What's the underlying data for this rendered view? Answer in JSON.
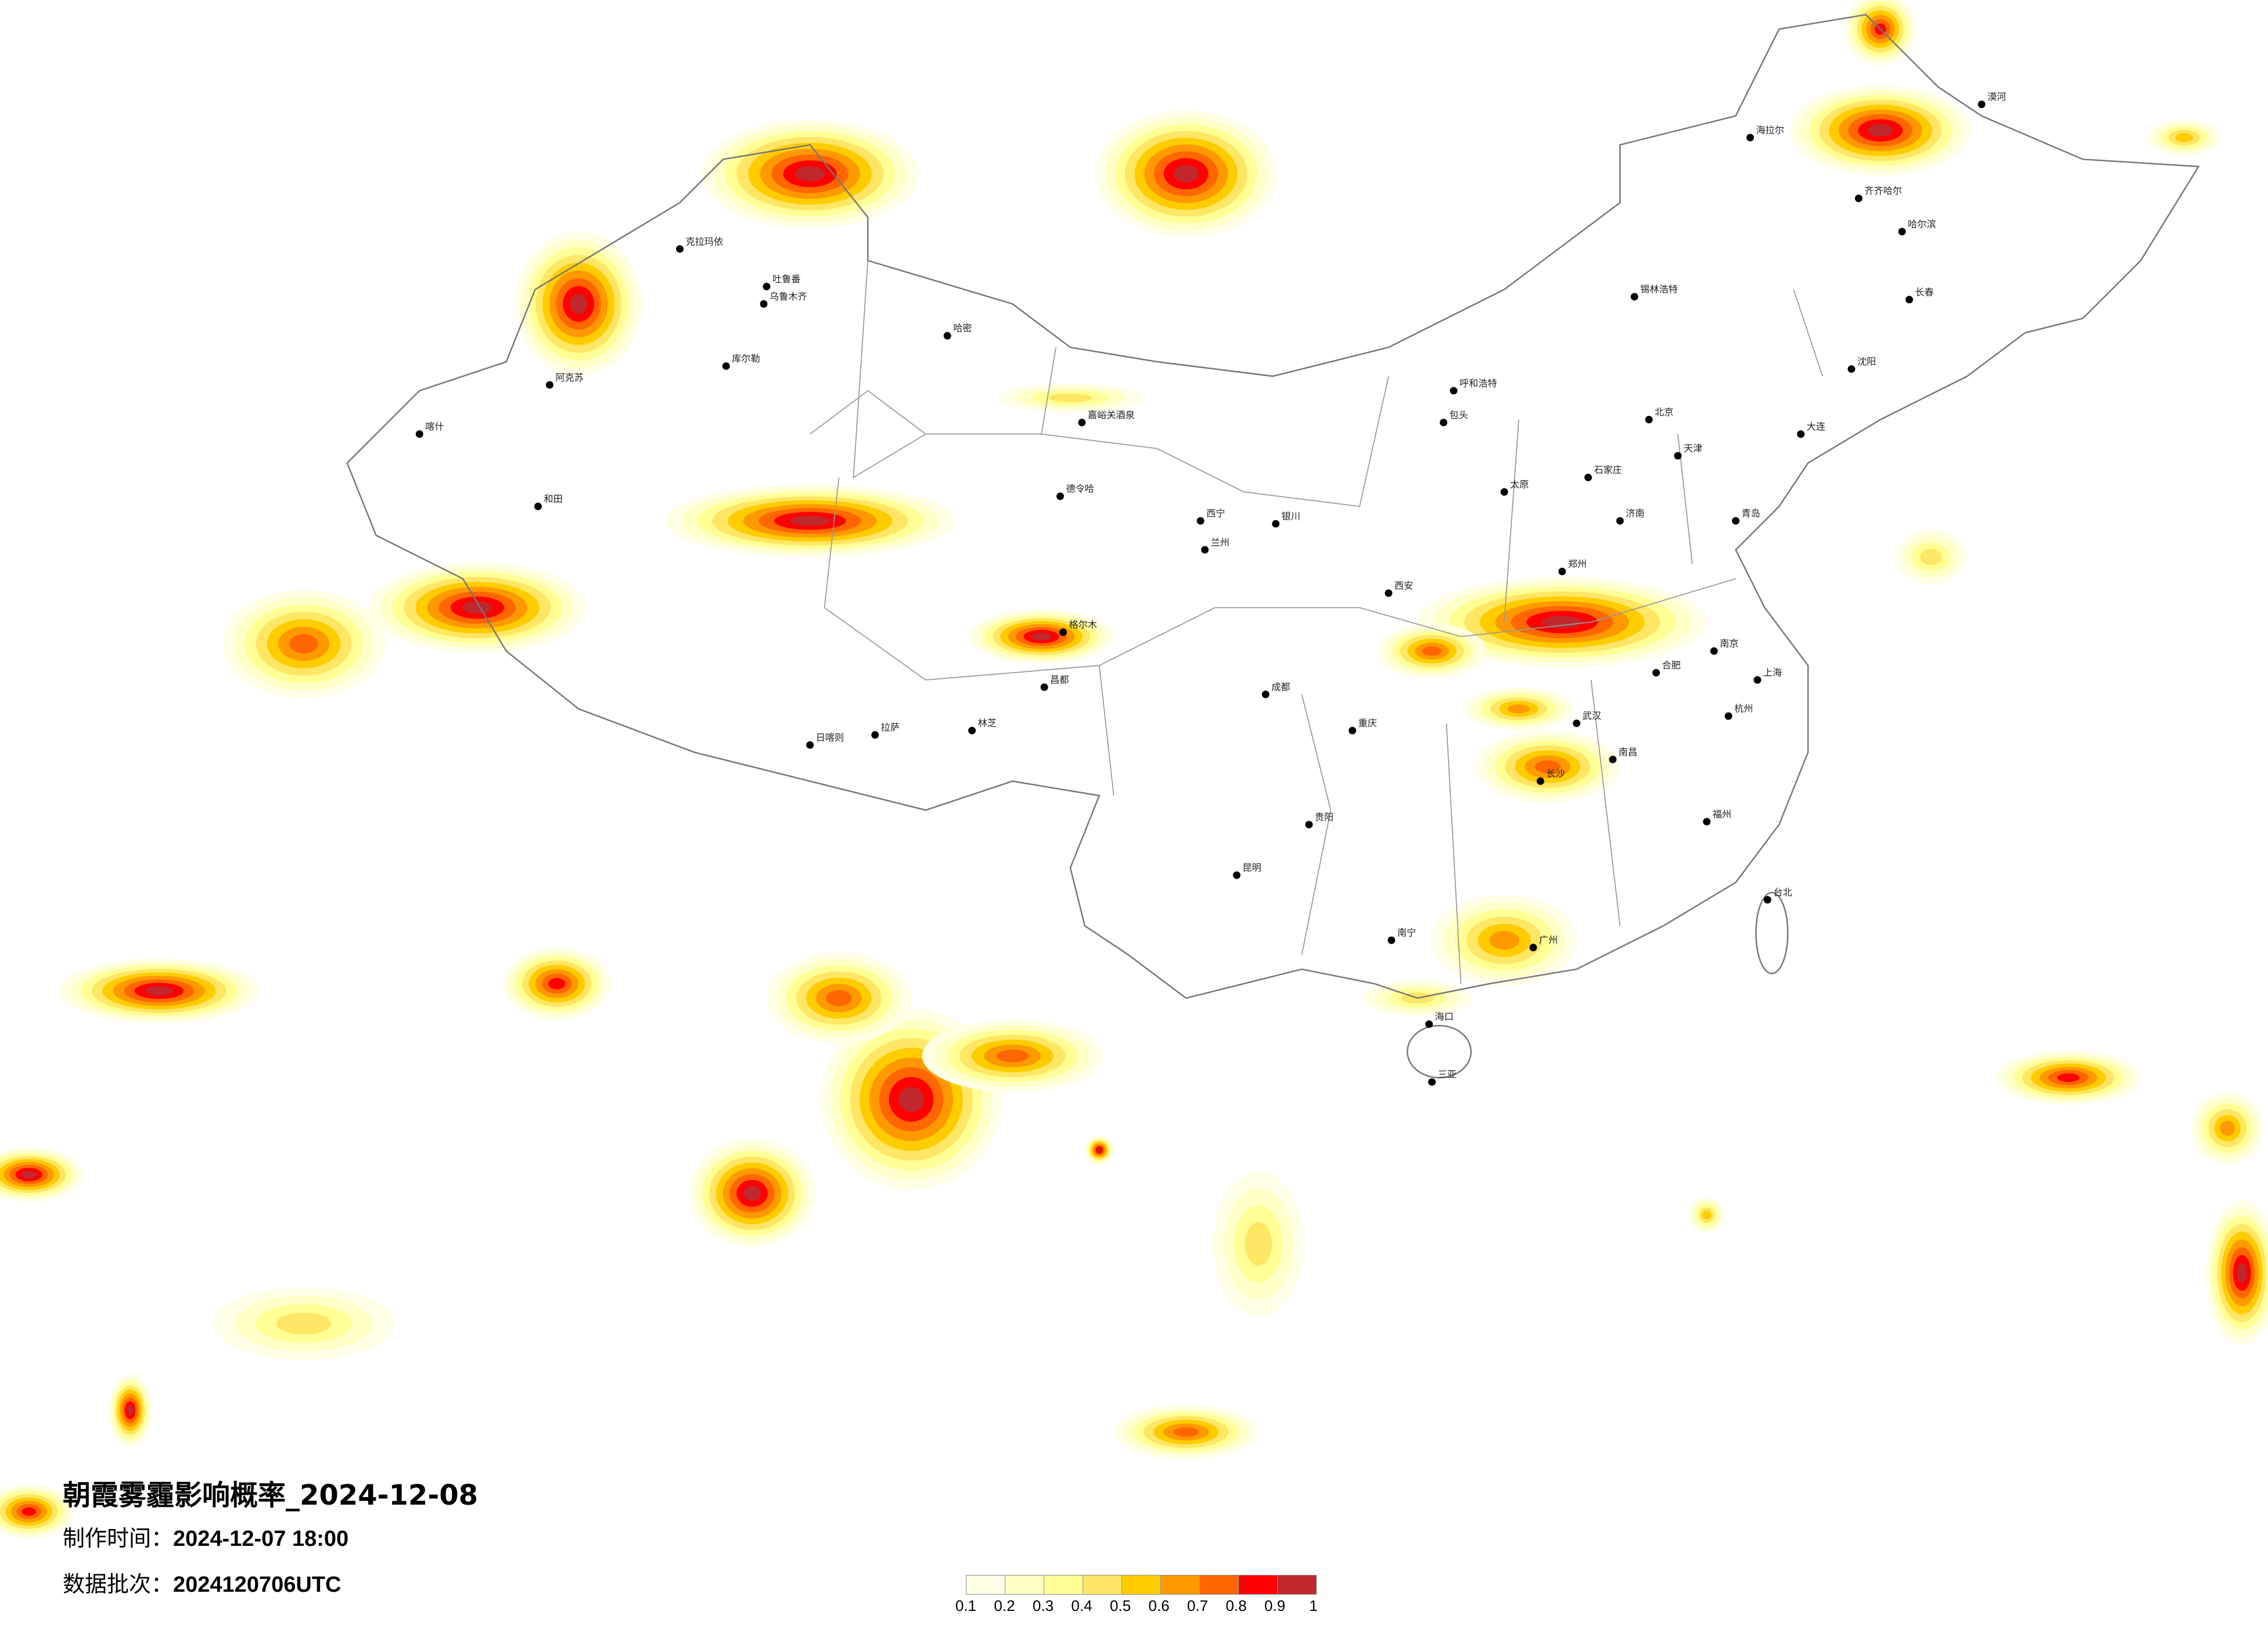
{
  "title": "朝霞雾霾影响概率_2024-12-08",
  "made_label": "制作时间：",
  "made_value": "2024-12-07 18:00",
  "batch_label": "数据批次：",
  "batch_value": "2024120706UTC",
  "legend": {
    "colors": [
      "#ffffe6",
      "#ffffc8",
      "#ffff96",
      "#ffe664",
      "#ffcc00",
      "#ff9900",
      "#ff6600",
      "#ff0000",
      "#c0282d"
    ],
    "ticks": [
      "0.1",
      "0.2",
      "0.3",
      "0.4",
      "0.5",
      "0.6",
      "0.7",
      "0.8",
      "0.9",
      "1"
    ]
  },
  "cities": [
    "克拉玛依",
    "乌鲁木齐",
    "吐鲁番",
    "哈密",
    "库尔勒",
    "喀什",
    "和田",
    "阿克苏",
    "嘉峪关酒泉",
    "德令哈",
    "格尔木",
    "拉萨",
    "日喀则",
    "林芝",
    "昌都",
    "西宁",
    "兰州",
    "银川",
    "呼和浩特",
    "包头",
    "北京",
    "天津",
    "石家庄",
    "太原",
    "济南",
    "郑州",
    "西安",
    "成都",
    "重庆",
    "贵阳",
    "昆明",
    "南宁",
    "广州",
    "长沙",
    "武汉",
    "南昌",
    "合肥",
    "南京",
    "上海",
    "杭州",
    "福州",
    "台北",
    "海口",
    "哈尔滨",
    "长春",
    "沈阳",
    "大连",
    "青岛",
    "齐齐哈尔",
    "海拉尔",
    "锡林浩特",
    "漠河",
    "三亚"
  ]
}
